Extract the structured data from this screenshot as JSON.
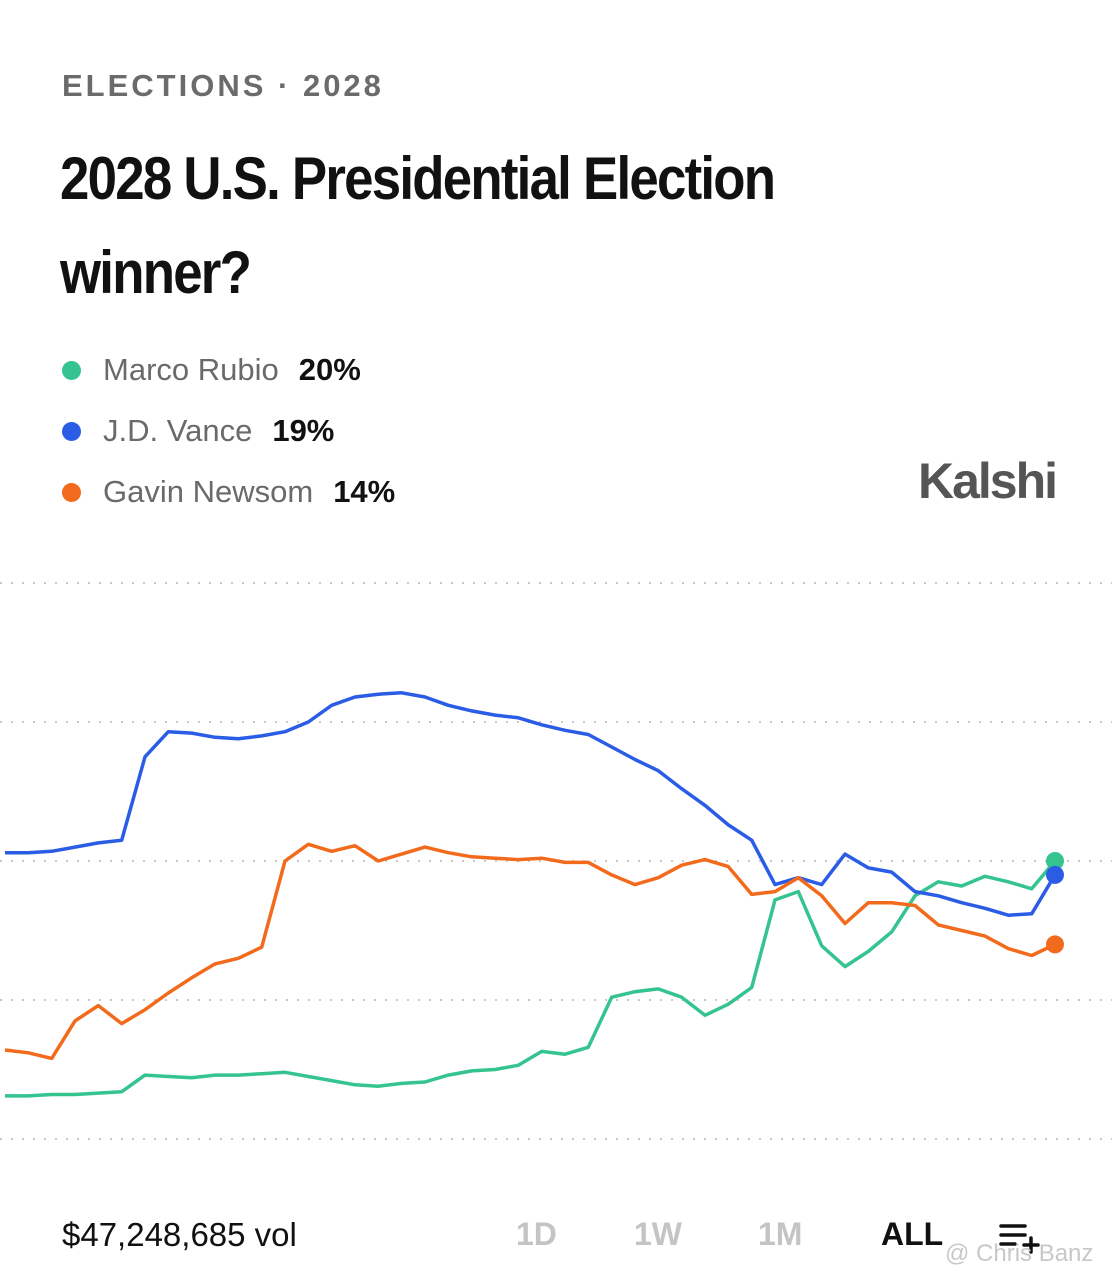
{
  "header": {
    "breadcrumb": "ELECTIONS · 2028",
    "title": "2028 U.S. Presidential Election winner?",
    "brand": "Kalshi"
  },
  "chart_data": {
    "type": "line",
    "ylim": [
      0,
      40
    ],
    "yticks": [
      0,
      10,
      20,
      30,
      40
    ],
    "grid": true,
    "series": [
      {
        "name": "Marco Rubio",
        "color": "#35c48f",
        "last_label": "20%",
        "values": [
          3.1,
          3.1,
          3.2,
          3.2,
          3.3,
          3.4,
          4.6,
          4.5,
          4.4,
          4.6,
          4.6,
          4.7,
          4.8,
          4.5,
          4.2,
          3.9,
          3.8,
          4,
          4.1,
          4.6,
          4.9,
          5,
          5.3,
          6.3,
          6.1,
          6.6,
          10.2,
          10.6,
          10.8,
          10.2,
          8.9,
          9.7,
          10.9,
          17.2,
          17.8,
          13.9,
          12.4,
          13.5,
          14.9,
          17.5,
          18.5,
          18.2,
          18.9,
          18.5,
          18,
          20
        ]
      },
      {
        "name": "J.D. Vance",
        "color": "#2a5ce6",
        "last_label": "19%",
        "values": [
          20.6,
          20.6,
          20.7,
          21,
          21.3,
          21.5,
          27.5,
          29.3,
          29.2,
          28.9,
          28.8,
          29,
          29.3,
          30,
          31.2,
          31.8,
          32,
          32.1,
          31.8,
          31.2,
          30.8,
          30.5,
          30.3,
          29.8,
          29.4,
          29.1,
          28.2,
          27.3,
          26.5,
          25.2,
          24,
          22.6,
          21.5,
          18.3,
          18.8,
          18.3,
          20.5,
          19.5,
          19.2,
          17.8,
          17.5,
          17,
          16.6,
          16.1,
          16.2,
          19
        ]
      },
      {
        "name": "Gavin Newsom",
        "color": "#f26b1d",
        "last_label": "14%",
        "values": [
          6.4,
          6.2,
          5.8,
          8.5,
          9.6,
          8.3,
          9.3,
          10.5,
          11.6,
          12.6,
          13,
          13.8,
          20,
          21.2,
          20.7,
          21.1,
          20,
          20.5,
          21,
          20.6,
          20.3,
          20.2,
          20.1,
          20.2,
          19.9,
          19.9,
          19,
          18.3,
          18.8,
          19.7,
          20.1,
          19.6,
          17.6,
          17.8,
          18.8,
          17.5,
          15.5,
          17,
          17,
          16.8,
          15.4,
          15,
          14.6,
          13.7,
          13.2,
          14
        ]
      }
    ]
  },
  "footer": {
    "volume": "$47,248,685 vol",
    "ranges": [
      "1D",
      "1W",
      "1M",
      "ALL"
    ],
    "active_range": 3,
    "watermark": "@ Chris Banz"
  }
}
